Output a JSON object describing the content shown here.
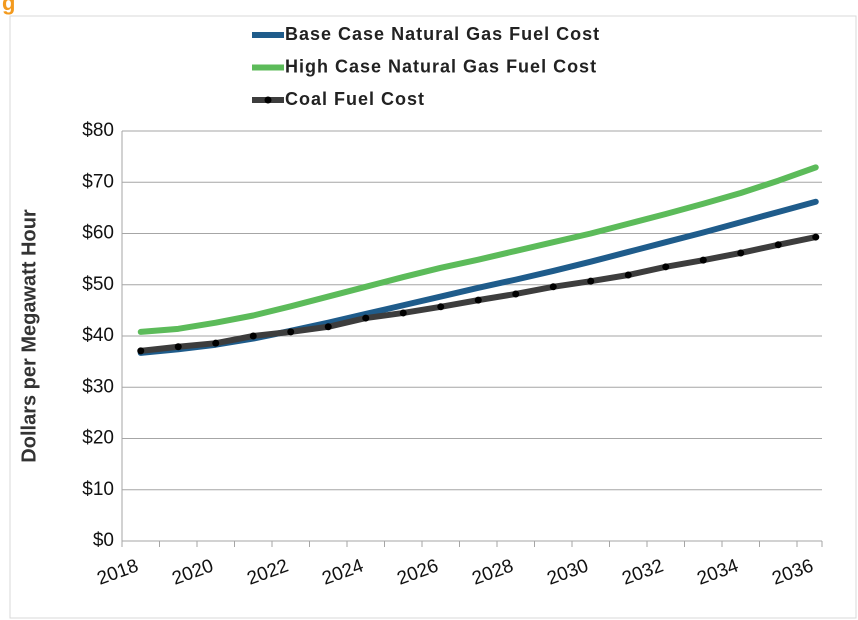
{
  "chart_data": {
    "type": "line",
    "title": "g",
    "y_label": "Dollars per Megawatt Hour",
    "categories": [
      "2018",
      null,
      "2020",
      null,
      "2022",
      null,
      "2024",
      null,
      "2026",
      null,
      "2028",
      null,
      "2030",
      null,
      "2032",
      null,
      "2034",
      null,
      "2036"
    ],
    "series": [
      {
        "name": "Base Case Natural Gas Fuel Cost",
        "color": "#1f5c8b",
        "values": [
          36.7,
          37.4,
          38.3,
          39.5,
          41.0,
          42.6,
          44.3,
          46.0,
          47.7,
          49.4,
          51.0,
          52.7,
          54.5,
          56.4,
          58.3,
          60.2,
          62.2,
          64.2,
          66.2
        ]
      },
      {
        "name": "High Case Natural Gas Fuel Cost",
        "color": "#5cbb5a",
        "values": [
          40.8,
          41.4,
          42.6,
          44.0,
          45.8,
          47.7,
          49.6,
          51.5,
          53.3,
          54.9,
          56.6,
          58.3,
          60.0,
          61.9,
          63.8,
          65.8,
          67.9,
          70.3,
          72.9
        ]
      },
      {
        "name": "Coal Fuel Cost",
        "color": "#3d3d3d",
        "marker_color": "#000000",
        "values": [
          37.1,
          37.9,
          38.6,
          40.0,
          40.8,
          41.8,
          43.5,
          44.5,
          45.7,
          47.0,
          48.2,
          49.6,
          50.7,
          51.9,
          53.5,
          54.8,
          56.2,
          57.8,
          59.3
        ]
      }
    ],
    "ylim": [
      0,
      80
    ],
    "yticks": [
      {
        "value": 0,
        "label": "$0"
      },
      {
        "value": 10,
        "label": "$10"
      },
      {
        "value": 20,
        "label": "$20"
      },
      {
        "value": 30,
        "label": "$30"
      },
      {
        "value": 40,
        "label": "$40"
      },
      {
        "value": 50,
        "label": "$50"
      },
      {
        "value": 60,
        "label": "$60"
      },
      {
        "value": 70,
        "label": "$70"
      },
      {
        "value": 80,
        "label": "$80"
      }
    ],
    "grid": true
  }
}
